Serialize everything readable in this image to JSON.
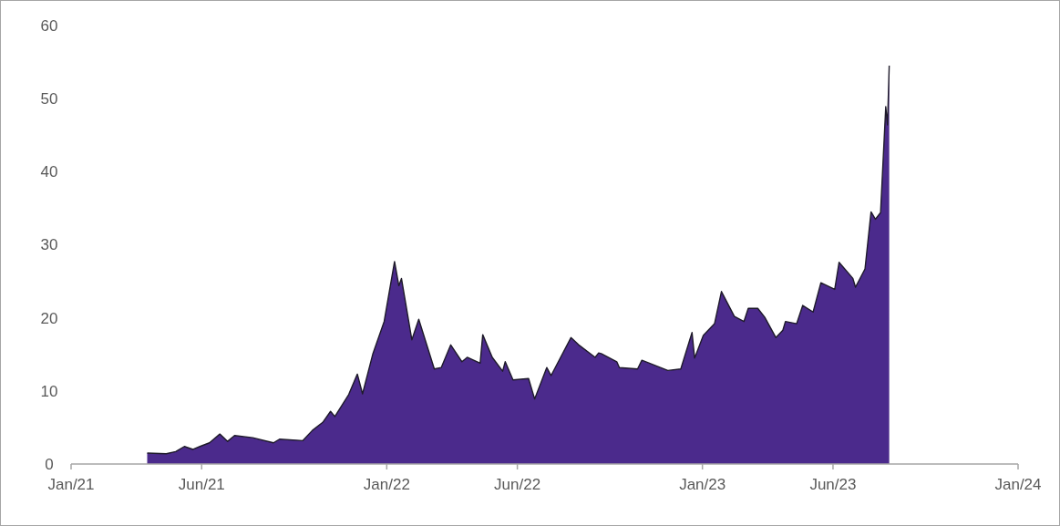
{
  "chart_data": {
    "type": "area",
    "x": [
      "2021-03-30",
      "2021-04-21",
      "2021-05-02",
      "2021-05-12",
      "2021-05-22",
      "2021-05-30",
      "2021-06-10",
      "2021-06-22",
      "2021-07-01",
      "2021-07-09",
      "2021-07-30",
      "2021-08-23",
      "2021-08-30",
      "2021-09-26",
      "2021-10-07",
      "2021-10-19",
      "2021-10-28",
      "2021-11-02",
      "2021-11-18",
      "2021-11-28",
      "2021-12-04",
      "2021-12-16",
      "2021-12-29",
      "2022-01-10",
      "2022-01-15",
      "2022-01-18",
      "2022-01-30",
      "2022-02-07",
      "2022-02-25",
      "2022-03-05",
      "2022-03-16",
      "2022-03-29",
      "2022-04-04",
      "2022-04-19",
      "2022-04-22",
      "2022-05-03",
      "2022-05-15",
      "2022-05-18",
      "2022-05-27",
      "2022-06-14",
      "2022-06-21",
      "2022-07-05",
      "2022-07-10",
      "2022-08-02",
      "2022-08-11",
      "2022-08-30",
      "2022-09-03",
      "2022-09-06",
      "2022-09-24",
      "2022-09-27",
      "2022-10-18",
      "2022-10-23",
      "2022-11-22",
      "2022-12-07",
      "2022-12-20",
      "2022-12-23",
      "2023-01-02",
      "2023-01-15",
      "2023-01-23",
      "2023-02-07",
      "2023-02-18",
      "2023-02-23",
      "2023-03-06",
      "2023-03-14",
      "2023-03-27",
      "2023-04-04",
      "2023-04-07",
      "2023-04-20",
      "2023-04-27",
      "2023-05-09",
      "2023-05-18",
      "2023-06-03",
      "2023-06-08",
      "2023-06-24",
      "2023-06-27",
      "2023-07-08",
      "2023-07-15",
      "2023-07-20",
      "2023-07-26",
      "2023-08-01",
      "2023-08-03",
      "2023-08-05"
    ],
    "series": [
      {
        "color": "#4b2a8c",
        "values": [
          1.5,
          1.4,
          1.7,
          2.4,
          2.0,
          2.4,
          2.9,
          4.1,
          3.1,
          3.9,
          3.6,
          2.9,
          3.4,
          3.2,
          4.6,
          5.7,
          7.2,
          6.5,
          9.5,
          12.3,
          9.6,
          15.1,
          19.5,
          27.7,
          24.4,
          25.4,
          17.0,
          19.8,
          13.0,
          13.2,
          16.3,
          14.0,
          14.6,
          13.8,
          17.7,
          14.6,
          12.7,
          14.0,
          11.5,
          11.7,
          8.9,
          13.2,
          12.1,
          17.3,
          16.3,
          14.6,
          15.2,
          15.1,
          14.0,
          13.2,
          13.0,
          14.2,
          12.8,
          13.0,
          18.0,
          14.5,
          17.6,
          19.2,
          23.6,
          20.2,
          19.5,
          21.3,
          21.3,
          20.1,
          17.3,
          18.3,
          19.5,
          19.2,
          21.7,
          20.8,
          24.8,
          23.9,
          27.6,
          25.4,
          24.2,
          26.7,
          34.5,
          33.5,
          34.4,
          48.9,
          46.4,
          54.5
        ]
      }
    ],
    "xlim": [
      "2021-01-01",
      "2024-01-01"
    ],
    "xticks": [
      {
        "value": "2021-01-01",
        "label": "Jan/21"
      },
      {
        "value": "2021-06-01",
        "label": "Jun/21"
      },
      {
        "value": "2022-01-01",
        "label": "Jan/22"
      },
      {
        "value": "2022-06-01",
        "label": "Jun/22"
      },
      {
        "value": "2023-01-01",
        "label": "Jan/23"
      },
      {
        "value": "2023-06-01",
        "label": "Jun/23"
      },
      {
        "value": "2024-01-01",
        "label": "Jan/24"
      }
    ],
    "ylim": [
      0,
      60
    ],
    "yticks": [
      0,
      10,
      20,
      30,
      40,
      50,
      60
    ],
    "grid": false
  }
}
